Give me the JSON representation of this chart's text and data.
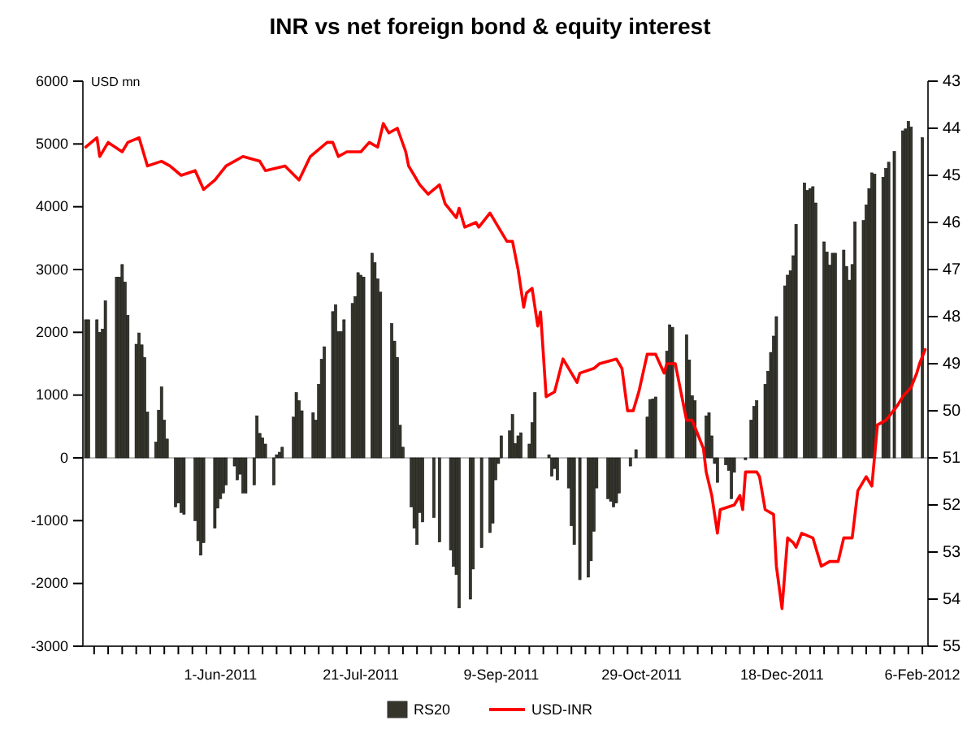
{
  "chart_data": {
    "type": "bar",
    "title": "INR vs net foreign bond & equity interest",
    "ylabel": "USD mn",
    "xlim": [
      "2011-04-13",
      "2012-02-08"
    ],
    "xticks": [
      {
        "value": "2011-04-17",
        "label": null
      },
      {
        "value": "2011-04-22",
        "label": null
      },
      {
        "value": "2011-04-27",
        "label": null
      },
      {
        "value": "2011-05-02",
        "label": null
      },
      {
        "value": "2011-05-07",
        "label": null
      },
      {
        "value": "2011-05-12",
        "label": null
      },
      {
        "value": "2011-05-17",
        "label": null
      },
      {
        "value": "2011-05-22",
        "label": null
      },
      {
        "value": "2011-05-27",
        "label": null
      },
      {
        "value": "2011-06-01",
        "label": "1-Jun-2011"
      },
      {
        "value": "2011-06-06",
        "label": null
      },
      {
        "value": "2011-06-11",
        "label": null
      },
      {
        "value": "2011-06-16",
        "label": null
      },
      {
        "value": "2011-06-21",
        "label": null
      },
      {
        "value": "2011-06-26",
        "label": null
      },
      {
        "value": "2011-07-01",
        "label": null
      },
      {
        "value": "2011-07-06",
        "label": null
      },
      {
        "value": "2011-07-11",
        "label": null
      },
      {
        "value": "2011-07-16",
        "label": null
      },
      {
        "value": "2011-07-21",
        "label": "21-Jul-2011"
      },
      {
        "value": "2011-07-26",
        "label": null
      },
      {
        "value": "2011-07-31",
        "label": null
      },
      {
        "value": "2011-08-05",
        "label": null
      },
      {
        "value": "2011-08-10",
        "label": null
      },
      {
        "value": "2011-08-15",
        "label": null
      },
      {
        "value": "2011-08-20",
        "label": null
      },
      {
        "value": "2011-08-25",
        "label": null
      },
      {
        "value": "2011-08-30",
        "label": null
      },
      {
        "value": "2011-09-04",
        "label": null
      },
      {
        "value": "2011-09-09",
        "label": "9-Sep-2011"
      },
      {
        "value": "2011-09-14",
        "label": null
      },
      {
        "value": "2011-09-19",
        "label": null
      },
      {
        "value": "2011-09-24",
        "label": null
      },
      {
        "value": "2011-09-29",
        "label": null
      },
      {
        "value": "2011-10-04",
        "label": null
      },
      {
        "value": "2011-10-09",
        "label": null
      },
      {
        "value": "2011-10-14",
        "label": null
      },
      {
        "value": "2011-10-19",
        "label": null
      },
      {
        "value": "2011-10-24",
        "label": null
      },
      {
        "value": "2011-10-29",
        "label": "29-Oct-2011"
      },
      {
        "value": "2011-11-03",
        "label": null
      },
      {
        "value": "2011-11-08",
        "label": null
      },
      {
        "value": "2011-11-13",
        "label": null
      },
      {
        "value": "2011-11-18",
        "label": null
      },
      {
        "value": "2011-11-23",
        "label": null
      },
      {
        "value": "2011-11-28",
        "label": null
      },
      {
        "value": "2011-12-03",
        "label": null
      },
      {
        "value": "2011-12-08",
        "label": null
      },
      {
        "value": "2011-12-13",
        "label": null
      },
      {
        "value": "2011-12-18",
        "label": "18-Dec-2011"
      },
      {
        "value": "2011-12-23",
        "label": null
      },
      {
        "value": "2011-12-28",
        "label": null
      },
      {
        "value": "2012-01-02",
        "label": null
      },
      {
        "value": "2012-01-07",
        "label": null
      },
      {
        "value": "2012-01-12",
        "label": null
      },
      {
        "value": "2012-01-17",
        "label": null
      },
      {
        "value": "2012-01-22",
        "label": null
      },
      {
        "value": "2012-01-27",
        "label": null
      },
      {
        "value": "2012-02-01",
        "label": null
      },
      {
        "value": "2012-02-06",
        "label": "6-Feb-2012"
      }
    ],
    "ylim": [
      -3000,
      6000
    ],
    "yticks": [
      -3000,
      -2000,
      -1000,
      0,
      1000,
      2000,
      3000,
      4000,
      5000,
      6000
    ],
    "y2lim": [
      55,
      43
    ],
    "y2ticks": [
      43,
      44,
      45,
      46,
      47,
      48,
      49,
      50,
      51,
      52,
      53,
      54,
      55
    ],
    "ref_lines": [
      {
        "axis": "y",
        "value": 0,
        "color": "#aaaaaa"
      }
    ],
    "grid": false,
    "legend": "bottom",
    "series": [
      {
        "name": "RS20",
        "color": "#35352b",
        "x": [
          "2011-04-14",
          "2011-04-15",
          "2011-04-18",
          "2011-04-19",
          "2011-04-20",
          "2011-04-21",
          "2011-04-25",
          "2011-04-26",
          "2011-04-27",
          "2011-04-28",
          "2011-04-29",
          "2011-05-02",
          "2011-05-03",
          "2011-05-04",
          "2011-05-05",
          "2011-05-06",
          "2011-05-09",
          "2011-05-10",
          "2011-05-11",
          "2011-05-12",
          "2011-05-13",
          "2011-05-16",
          "2011-05-17",
          "2011-05-18",
          "2011-05-19",
          "2011-05-23",
          "2011-05-24",
          "2011-05-25",
          "2011-05-26",
          "2011-05-30",
          "2011-05-31",
          "2011-06-01",
          "2011-06-02",
          "2011-06-03",
          "2011-06-06",
          "2011-06-07",
          "2011-06-08",
          "2011-06-09",
          "2011-06-10",
          "2011-06-13",
          "2011-06-14",
          "2011-06-15",
          "2011-06-16",
          "2011-06-17",
          "2011-06-20",
          "2011-06-21",
          "2011-06-22",
          "2011-06-23",
          "2011-06-27",
          "2011-06-28",
          "2011-06-29",
          "2011-06-30",
          "2011-07-04",
          "2011-07-05",
          "2011-07-06",
          "2011-07-07",
          "2011-07-08",
          "2011-07-11",
          "2011-07-12",
          "2011-07-13",
          "2011-07-14",
          "2011-07-15",
          "2011-07-18",
          "2011-07-19",
          "2011-07-20",
          "2011-07-21",
          "2011-07-22",
          "2011-07-25",
          "2011-07-26",
          "2011-07-27",
          "2011-07-28",
          "2011-08-01",
          "2011-08-02",
          "2011-08-03",
          "2011-08-04",
          "2011-08-05",
          "2011-08-08",
          "2011-08-09",
          "2011-08-10",
          "2011-08-11",
          "2011-08-12",
          "2011-08-16",
          "2011-08-18",
          "2011-08-22",
          "2011-08-23",
          "2011-08-24",
          "2011-08-25",
          "2011-08-29",
          "2011-08-30",
          "2011-09-02",
          "2011-09-05",
          "2011-09-06",
          "2011-09-07",
          "2011-09-08",
          "2011-09-09",
          "2011-09-12",
          "2011-09-13",
          "2011-09-14",
          "2011-09-15",
          "2011-09-16",
          "2011-09-19",
          "2011-09-20",
          "2011-09-21",
          "2011-09-26",
          "2011-09-27",
          "2011-09-28",
          "2011-09-29",
          "2011-10-03",
          "2011-10-04",
          "2011-10-05",
          "2011-10-07",
          "2011-10-10",
          "2011-10-11",
          "2011-10-12",
          "2011-10-13",
          "2011-10-17",
          "2011-10-18",
          "2011-10-19",
          "2011-10-20",
          "2011-10-21",
          "2011-10-25",
          "2011-10-27",
          "2011-10-31",
          "2011-11-01",
          "2011-11-02",
          "2011-11-03",
          "2011-11-07",
          "2011-11-08",
          "2011-11-09",
          "2011-11-14",
          "2011-11-15",
          "2011-11-16",
          "2011-11-17",
          "2011-11-21",
          "2011-11-22",
          "2011-11-23",
          "2011-11-24",
          "2011-11-25",
          "2011-11-28",
          "2011-11-29",
          "2011-11-30",
          "2011-12-01",
          "2011-12-05",
          "2011-12-07",
          "2011-12-08",
          "2011-12-09",
          "2011-12-12",
          "2011-12-13",
          "2011-12-14",
          "2011-12-15",
          "2011-12-16",
          "2011-12-19",
          "2011-12-20",
          "2011-12-21",
          "2011-12-22",
          "2011-12-23",
          "2011-12-26",
          "2011-12-27",
          "2011-12-28",
          "2011-12-29",
          "2011-12-30",
          "2012-01-02",
          "2012-01-03",
          "2012-01-04",
          "2012-01-05",
          "2012-01-06",
          "2012-01-09",
          "2012-01-10",
          "2012-01-11",
          "2012-01-12",
          "2012-01-13",
          "2012-01-16",
          "2012-01-17",
          "2012-01-18",
          "2012-01-19",
          "2012-01-20",
          "2012-01-23",
          "2012-01-24",
          "2012-01-25",
          "2012-01-27",
          "2012-01-30",
          "2012-01-31",
          "2012-02-01",
          "2012-02-02",
          "2012-02-06"
        ],
        "values": [
          2200,
          2200,
          2200,
          2000,
          2050,
          2500,
          2880,
          2880,
          3080,
          2800,
          2270,
          1810,
          1990,
          1800,
          1600,
          730,
          250,
          760,
          1130,
          600,
          300,
          -780,
          -720,
          -870,
          -900,
          -1000,
          -1320,
          -1550,
          -1350,
          -1120,
          -800,
          -650,
          -560,
          -430,
          -130,
          -350,
          -260,
          -560,
          -560,
          -430,
          670,
          390,
          320,
          220,
          -430,
          50,
          90,
          170,
          650,
          1040,
          910,
          750,
          720,
          600,
          1170,
          1570,
          1770,
          2330,
          2440,
          2010,
          2010,
          2200,
          2460,
          2570,
          2950,
          2910,
          2880,
          3260,
          3110,
          2850,
          2640,
          2140,
          1860,
          1600,
          520,
          170,
          -780,
          -1120,
          -1380,
          -870,
          -1020,
          -950,
          -1340,
          -1470,
          -1730,
          -1860,
          -2390,
          -2250,
          -1770,
          -1430,
          -1190,
          -1040,
          -350,
          -90,
          350,
          430,
          690,
          230,
          350,
          400,
          220,
          560,
          1040,
          50,
          -290,
          -170,
          -350,
          -480,
          -1080,
          -1380,
          -1940,
          -1900,
          -1640,
          -1170,
          -480,
          -650,
          -690,
          -780,
          -720,
          -560,
          -130,
          130,
          650,
          930,
          940,
          970,
          1700,
          2120,
          2080,
          1960,
          1560,
          990,
          910,
          670,
          720,
          350,
          -90,
          -390,
          -110,
          -200,
          -650,
          -230,
          -30,
          600,
          820,
          910,
          1170,
          1380,
          1680,
          1940,
          2250,
          2740,
          2910,
          2980,
          3220,
          3720,
          4380,
          4260,
          4290,
          4320,
          4060,
          3440,
          3280,
          3070,
          3260,
          3260,
          3310,
          3050,
          2830,
          3080,
          3760,
          3780,
          4030,
          4290,
          4540,
          4520,
          4470,
          4610,
          4710,
          4880,
          5210,
          5240,
          5360,
          5270,
          5100
        ]
      },
      {
        "name": "USD-INR",
        "type": "line",
        "axis": "y2",
        "color": "#ff0000",
        "marker": "none",
        "line_style": "solid",
        "x": [
          "2011-04-14",
          "2011-04-18",
          "2011-04-19",
          "2011-04-22",
          "2011-04-27",
          "2011-04-29",
          "2011-05-03",
          "2011-05-06",
          "2011-05-11",
          "2011-05-14",
          "2011-05-18",
          "2011-05-23",
          "2011-05-26",
          "2011-05-30",
          "2011-06-03",
          "2011-06-09",
          "2011-06-15",
          "2011-06-17",
          "2011-06-24",
          "2011-06-29",
          "2011-07-03",
          "2011-07-09",
          "2011-07-11",
          "2011-07-13",
          "2011-07-16",
          "2011-07-21",
          "2011-07-24",
          "2011-07-27",
          "2011-07-29",
          "2011-07-31",
          "2011-08-03",
          "2011-08-06",
          "2011-08-07",
          "2011-08-11",
          "2011-08-14",
          "2011-08-18",
          "2011-08-20",
          "2011-08-24",
          "2011-08-25",
          "2011-08-27",
          "2011-08-31",
          "2011-09-01",
          "2011-09-05",
          "2011-09-08",
          "2011-09-11",
          "2011-09-13",
          "2011-09-15",
          "2011-09-17",
          "2011-09-18",
          "2011-09-20",
          "2011-09-22",
          "2011-09-23",
          "2011-09-25",
          "2011-09-28",
          "2011-10-01",
          "2011-10-06",
          "2011-10-07",
          "2011-10-12",
          "2011-10-14",
          "2011-10-20",
          "2011-10-22",
          "2011-10-24",
          "2011-10-26",
          "2011-10-28",
          "2011-10-31",
          "2011-11-03",
          "2011-11-06",
          "2011-11-07",
          "2011-11-10",
          "2011-11-12",
          "2011-11-14",
          "2011-11-16",
          "2011-11-18",
          "2011-11-20",
          "2011-11-21",
          "2011-11-23",
          "2011-11-25",
          "2011-11-26",
          "2011-12-01",
          "2011-12-03",
          "2011-12-04",
          "2011-12-05",
          "2011-12-09",
          "2011-12-10",
          "2011-12-12",
          "2011-12-15",
          "2011-12-16",
          "2011-12-18",
          "2011-12-20",
          "2011-12-22",
          "2011-12-23",
          "2011-12-25",
          "2011-12-29",
          "2011-12-31",
          "2012-01-01",
          "2012-01-04",
          "2012-01-07",
          "2012-01-09",
          "2012-01-12",
          "2012-01-14",
          "2012-01-17",
          "2012-01-19",
          "2012-01-21",
          "2012-01-24",
          "2012-01-28",
          "2012-01-30",
          "2012-02-02",
          "2012-02-04",
          "2012-02-05",
          "2012-02-07"
        ],
        "values": [
          44.4,
          44.2,
          44.6,
          44.3,
          44.5,
          44.3,
          44.2,
          44.8,
          44.7,
          44.8,
          45.0,
          44.9,
          45.3,
          45.1,
          44.8,
          44.6,
          44.7,
          44.9,
          44.8,
          45.1,
          44.6,
          44.3,
          44.3,
          44.6,
          44.5,
          44.5,
          44.3,
          44.4,
          43.9,
          44.1,
          44.0,
          44.5,
          44.8,
          45.2,
          45.4,
          45.2,
          45.6,
          45.9,
          45.7,
          46.1,
          46.0,
          46.1,
          45.8,
          46.1,
          46.4,
          46.4,
          47.0,
          47.8,
          47.5,
          47.4,
          48.2,
          47.9,
          49.7,
          49.6,
          48.9,
          49.4,
          49.2,
          49.1,
          49.0,
          48.9,
          49.1,
          50.0,
          50.0,
          49.6,
          48.8,
          48.8,
          49.2,
          49.0,
          49.0,
          49.6,
          50.2,
          50.2,
          50.5,
          50.8,
          51.3,
          51.8,
          52.6,
          52.1,
          52.0,
          51.8,
          52.1,
          51.3,
          51.3,
          51.4,
          52.1,
          52.2,
          53.3,
          54.2,
          52.7,
          52.8,
          52.9,
          52.6,
          52.7,
          53.1,
          53.3,
          53.2,
          53.2,
          52.7,
          52.7,
          51.7,
          51.4,
          51.6,
          50.3,
          50.2,
          49.9,
          49.7,
          49.5,
          49.2,
          49.0,
          48.7
        ]
      }
    ]
  }
}
